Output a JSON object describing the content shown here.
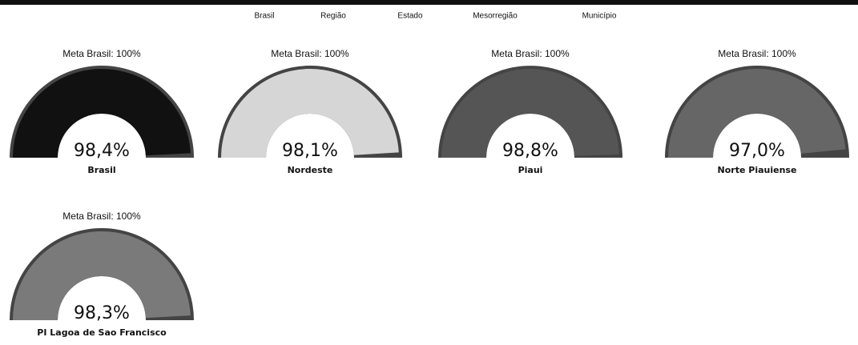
{
  "legend": {
    "items": [
      {
        "name": "Brasil",
        "color": "#111111"
      },
      {
        "name": "Região",
        "color": "#d6d6d6"
      },
      {
        "name": "Estado",
        "color": "#555555"
      },
      {
        "name": "Mesorregião",
        "color": "#666666"
      },
      {
        "name": "Município",
        "color": "#7a7a7a"
      }
    ]
  },
  "chart_data": [
    {
      "type": "gauge",
      "title": "Meta Brasil: 100%",
      "categories": [
        "Brasil"
      ],
      "values": [
        98.4
      ],
      "value_labels": [
        "98,4%"
      ],
      "color": "#111111",
      "ylim": [
        0,
        100
      ]
    },
    {
      "type": "gauge",
      "title": "Meta Brasil: 100%",
      "categories": [
        "Nordeste"
      ],
      "values": [
        98.1
      ],
      "value_labels": [
        "98,1%"
      ],
      "color": "#d6d6d6",
      "ylim": [
        0,
        100
      ]
    },
    {
      "type": "gauge",
      "title": "Meta Brasil: 100%",
      "categories": [
        "Piaui"
      ],
      "values": [
        98.8
      ],
      "value_labels": [
        "98,8%"
      ],
      "color": "#555555",
      "ylim": [
        0,
        100
      ]
    },
    {
      "type": "gauge",
      "title": "Meta Brasil: 100%",
      "categories": [
        "Norte Piauiense"
      ],
      "values": [
        97.0
      ],
      "value_labels": [
        "97,0%"
      ],
      "color": "#666666",
      "ylim": [
        0,
        100
      ]
    },
    {
      "type": "gauge",
      "title": "Meta Brasil: 100%",
      "categories": [
        "PI   Lagoa de Sao Francisco"
      ],
      "values": [
        98.3
      ],
      "value_labels": [
        "98,3%"
      ],
      "color": "#7a7a7a",
      "ylim": [
        0,
        100
      ]
    }
  ]
}
